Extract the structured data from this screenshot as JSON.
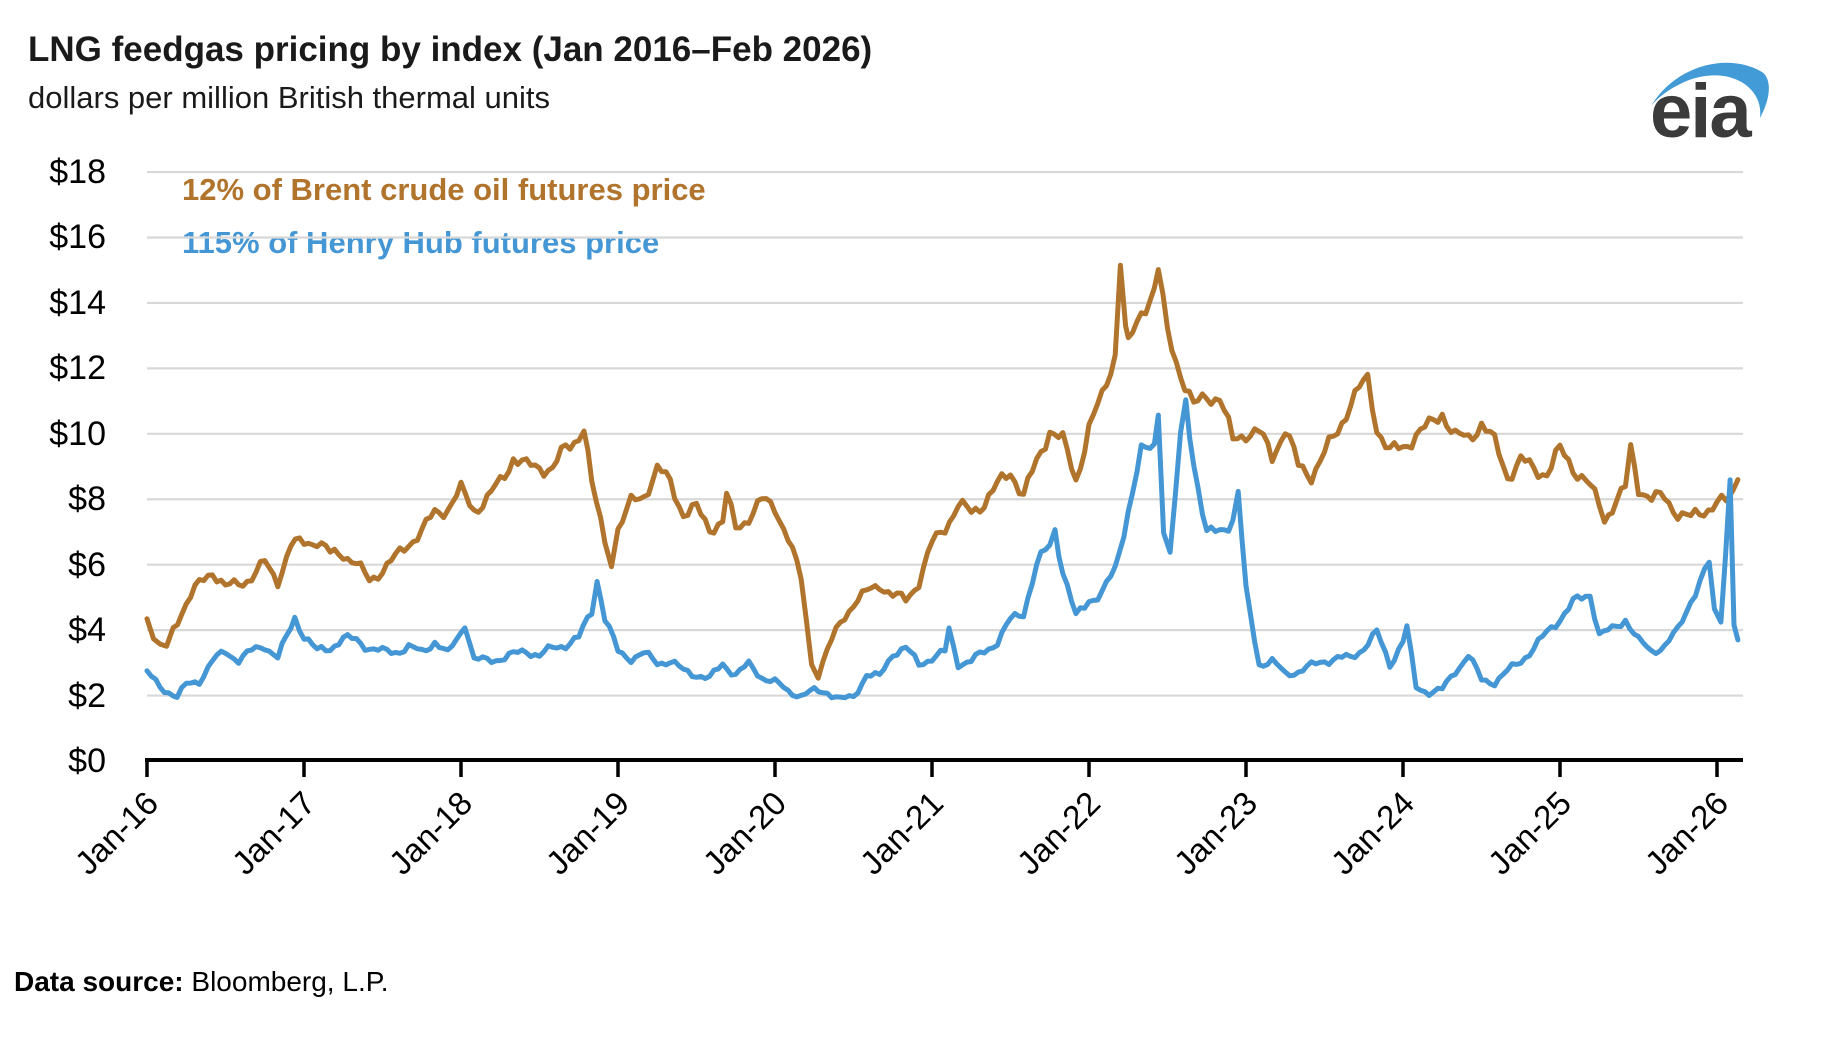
{
  "header": {
    "title": "LNG feedgas pricing by index (Jan 2016–Feb 2026)",
    "subtitle": "dollars per million British thermal units"
  },
  "logo": {
    "text": "eia",
    "swoosh_color": "#429bd6",
    "text_color": "#3b3b3b"
  },
  "legend": {
    "brent_label": "12% of Brent crude oil futures price",
    "henry_hub_label": "115% of Henry Hub futures price"
  },
  "footer": {
    "label": "Data source:",
    "text": " Bloomberg, L.P."
  },
  "colors": {
    "brent": "#b1742c",
    "henry_hub": "#4497d4",
    "grid": "#d8d8d8",
    "axis": "#000000"
  },
  "chart_data": {
    "type": "line",
    "title": "LNG feedgas pricing by index (Jan 2016–Feb 2026)",
    "ylabel": "dollars per million British thermal units",
    "xlabel": "",
    "ylim": [
      0,
      18
    ],
    "grid": true,
    "legend_position": "top-left",
    "x_unit": "months since Jan-2016 (0 = Jan-16, 121.6 = mid-Feb-26)",
    "y_ticks": [
      {
        "v": 0,
        "label": "$0"
      },
      {
        "v": 2,
        "label": "$2"
      },
      {
        "v": 4,
        "label": "$4"
      },
      {
        "v": 6,
        "label": "$6"
      },
      {
        "v": 8,
        "label": "$8"
      },
      {
        "v": 10,
        "label": "$10"
      },
      {
        "v": 12,
        "label": "$12"
      },
      {
        "v": 14,
        "label": "$14"
      },
      {
        "v": 16,
        "label": "$16"
      },
      {
        "v": 18,
        "label": "$18"
      }
    ],
    "x_ticks": [
      "Jan-16",
      "Jan-17",
      "Jan-18",
      "Jan-19",
      "Jan-20",
      "Jan-21",
      "Jan-22",
      "Jan-23",
      "Jan-24",
      "Jan-25",
      "Jan-26"
    ],
    "series": [
      {
        "name": "12% of Brent crude oil futures price",
        "color": "#b1742c",
        "points": [
          [
            0,
            4.35
          ],
          [
            0.5,
            3.6
          ],
          [
            1,
            3.5
          ],
          [
            1.5,
            3.4
          ],
          [
            2,
            4.0
          ],
          [
            3,
            4.75
          ],
          [
            4,
            5.35
          ],
          [
            5,
            5.8
          ],
          [
            6,
            5.35
          ],
          [
            7,
            5.5
          ],
          [
            8,
            5.7
          ],
          [
            9,
            6.1
          ],
          [
            10,
            5.5
          ],
          [
            11,
            6.5
          ],
          [
            12,
            6.6
          ],
          [
            13,
            6.65
          ],
          [
            14,
            6.3
          ],
          [
            15,
            6.4
          ],
          [
            16,
            6.1
          ],
          [
            17,
            5.6
          ],
          [
            18,
            5.9
          ],
          [
            19,
            6.2
          ],
          [
            20,
            6.6
          ],
          [
            21,
            6.9
          ],
          [
            22,
            7.5
          ],
          [
            23,
            7.7
          ],
          [
            24,
            8.3
          ],
          [
            25,
            7.8
          ],
          [
            26,
            8.1
          ],
          [
            27,
            8.6
          ],
          [
            28,
            9.3
          ],
          [
            29,
            8.9
          ],
          [
            30,
            8.9
          ],
          [
            31,
            8.8
          ],
          [
            32,
            9.5
          ],
          [
            33,
            10.0
          ],
          [
            33.4,
            10.3
          ],
          [
            34,
            8.5
          ],
          [
            35,
            6.9
          ],
          [
            35.5,
            6.2
          ],
          [
            36,
            7.2
          ],
          [
            37,
            7.9
          ],
          [
            38,
            8.1
          ],
          [
            39,
            8.8
          ],
          [
            40,
            8.4
          ],
          [
            41,
            7.5
          ],
          [
            42,
            7.7
          ],
          [
            43,
            7.2
          ],
          [
            44,
            7.4
          ],
          [
            44.3,
            8.2
          ],
          [
            45,
            7.2
          ],
          [
            46,
            7.5
          ],
          [
            47,
            7.9
          ],
          [
            48,
            7.7
          ],
          [
            49,
            6.7
          ],
          [
            50,
            5.5
          ],
          [
            50.8,
            3.0
          ],
          [
            51.3,
            2.65
          ],
          [
            52,
            3.4
          ],
          [
            53,
            4.3
          ],
          [
            54,
            4.9
          ],
          [
            55,
            5.2
          ],
          [
            56,
            5.4
          ],
          [
            57,
            5.0
          ],
          [
            58,
            4.85
          ],
          [
            59,
            5.4
          ],
          [
            60,
            6.6
          ],
          [
            61,
            7.2
          ],
          [
            62,
            7.9
          ],
          [
            63,
            7.7
          ],
          [
            64,
            8.0
          ],
          [
            65,
            8.4
          ],
          [
            66,
            8.8
          ],
          [
            67,
            8.0
          ],
          [
            68,
            9.0
          ],
          [
            69,
            10.1
          ],
          [
            70,
            9.8
          ],
          [
            71,
            8.7
          ],
          [
            72,
            10.3
          ],
          [
            73,
            11.2
          ],
          [
            74,
            12.5
          ],
          [
            74.4,
            15.3
          ],
          [
            74.8,
            13.2
          ],
          [
            75,
            12.6
          ],
          [
            76,
            13.6
          ],
          [
            77,
            14.3
          ],
          [
            77.3,
            14.9
          ],
          [
            78,
            13.0
          ],
          [
            79,
            11.9
          ],
          [
            80,
            10.9
          ],
          [
            81,
            11.3
          ],
          [
            82,
            11.2
          ],
          [
            83,
            9.8
          ],
          [
            84,
            10.0
          ],
          [
            85,
            9.9
          ],
          [
            86,
            9.2
          ],
          [
            87,
            10.1
          ],
          [
            88,
            9.0
          ],
          [
            89,
            8.85
          ],
          [
            90,
            9.5
          ],
          [
            91,
            10.2
          ],
          [
            92,
            11.0
          ],
          [
            93.3,
            11.6
          ],
          [
            94,
            10.1
          ],
          [
            95,
            9.3
          ],
          [
            96,
            9.5
          ],
          [
            97,
            10.0
          ],
          [
            98,
            10.3
          ],
          [
            99,
            10.8
          ],
          [
            100,
            10.0
          ],
          [
            101,
            9.9
          ],
          [
            102,
            10.3
          ],
          [
            103,
            9.6
          ],
          [
            104,
            8.6
          ],
          [
            105,
            9.1
          ],
          [
            106,
            8.9
          ],
          [
            107,
            8.9
          ],
          [
            108,
            9.6
          ],
          [
            109,
            9.1
          ],
          [
            110,
            8.6
          ],
          [
            111,
            7.8
          ],
          [
            111.4,
            7.35
          ],
          [
            112,
            7.7
          ],
          [
            113,
            8.2
          ],
          [
            113.4,
            9.4
          ],
          [
            114,
            8.3
          ],
          [
            115,
            8.0
          ],
          [
            116,
            8.1
          ],
          [
            117,
            7.7
          ],
          [
            118,
            7.5
          ],
          [
            119,
            7.7
          ],
          [
            120,
            7.9
          ],
          [
            120.7,
            7.8
          ],
          [
            121.2,
            8.1
          ],
          [
            121.6,
            8.6
          ]
        ]
      },
      {
        "name": "115% of Henry Hub futures price",
        "color": "#4497d4",
        "points": [
          [
            0,
            2.75
          ],
          [
            1,
            2.3
          ],
          [
            2,
            2.05
          ],
          [
            2.3,
            1.95
          ],
          [
            3,
            2.3
          ],
          [
            4,
            2.4
          ],
          [
            5,
            3.0
          ],
          [
            6,
            3.3
          ],
          [
            7,
            3.1
          ],
          [
            8,
            3.4
          ],
          [
            9,
            3.6
          ],
          [
            10,
            3.2
          ],
          [
            11,
            4.1
          ],
          [
            11.3,
            4.4
          ],
          [
            12,
            3.8
          ],
          [
            13,
            3.3
          ],
          [
            14,
            3.4
          ],
          [
            15,
            3.7
          ],
          [
            16,
            3.7
          ],
          [
            17,
            3.5
          ],
          [
            18,
            3.4
          ],
          [
            19,
            3.4
          ],
          [
            20,
            3.5
          ],
          [
            21,
            3.3
          ],
          [
            22,
            3.6
          ],
          [
            23,
            3.2
          ],
          [
            24,
            3.9
          ],
          [
            24.3,
            4.2
          ],
          [
            25,
            3.1
          ],
          [
            26,
            3.1
          ],
          [
            27,
            3.2
          ],
          [
            28,
            3.3
          ],
          [
            29,
            3.4
          ],
          [
            30,
            3.2
          ],
          [
            31,
            3.4
          ],
          [
            32,
            3.5
          ],
          [
            33,
            3.7
          ],
          [
            34,
            4.6
          ],
          [
            34.4,
            5.6
          ],
          [
            35,
            4.4
          ],
          [
            36,
            3.4
          ],
          [
            37,
            3.2
          ],
          [
            38,
            3.3
          ],
          [
            39,
            3.0
          ],
          [
            40,
            3.0
          ],
          [
            41,
            2.7
          ],
          [
            42,
            2.6
          ],
          [
            43,
            2.5
          ],
          [
            44,
            3.0
          ],
          [
            45,
            2.7
          ],
          [
            46,
            3.0
          ],
          [
            47,
            2.6
          ],
          [
            48,
            2.4
          ],
          [
            49,
            2.1
          ],
          [
            50,
            1.95
          ],
          [
            51,
            2.1
          ],
          [
            52,
            2.1
          ],
          [
            53,
            1.9
          ],
          [
            54,
            2.0
          ],
          [
            55,
            2.7
          ],
          [
            56,
            2.6
          ],
          [
            57,
            3.3
          ],
          [
            58,
            3.4
          ],
          [
            59,
            2.9
          ],
          [
            60,
            3.1
          ],
          [
            61,
            3.3
          ],
          [
            61.3,
            4.0
          ],
          [
            62,
            3.0
          ],
          [
            63,
            3.1
          ],
          [
            64,
            3.4
          ],
          [
            65,
            3.7
          ],
          [
            66,
            4.3
          ],
          [
            67,
            4.5
          ],
          [
            68,
            5.9
          ],
          [
            69,
            6.5
          ],
          [
            69.4,
            7.0
          ],
          [
            70,
            5.8
          ],
          [
            71,
            4.4
          ],
          [
            72,
            5.0
          ],
          [
            73,
            5.2
          ],
          [
            74,
            5.9
          ],
          [
            75,
            7.7
          ],
          [
            76,
            9.3
          ],
          [
            77,
            9.6
          ],
          [
            77.3,
            10.7
          ],
          [
            77.7,
            7.0
          ],
          [
            78.2,
            6.2
          ],
          [
            79,
            9.8
          ],
          [
            79.4,
            10.8
          ],
          [
            80,
            9.2
          ],
          [
            81,
            7.0
          ],
          [
            82,
            7.1
          ],
          [
            83,
            7.5
          ],
          [
            83.4,
            8.3
          ],
          [
            84,
            5.2
          ],
          [
            85,
            2.95
          ],
          [
            86,
            3.0
          ],
          [
            87,
            2.6
          ],
          [
            88,
            2.7
          ],
          [
            89,
            2.9
          ],
          [
            90,
            3.1
          ],
          [
            91,
            3.2
          ],
          [
            92,
            3.2
          ],
          [
            93,
            3.5
          ],
          [
            94,
            3.9
          ],
          [
            95,
            2.9
          ],
          [
            96,
            3.6
          ],
          [
            96.3,
            4.0
          ],
          [
            97,
            2.2
          ],
          [
            98,
            2.1
          ],
          [
            99,
            2.2
          ],
          [
            100,
            2.8
          ],
          [
            101,
            3.3
          ],
          [
            102,
            2.5
          ],
          [
            103,
            2.4
          ],
          [
            104,
            2.7
          ],
          [
            105,
            3.0
          ],
          [
            106,
            3.4
          ],
          [
            107,
            3.9
          ],
          [
            108,
            4.4
          ],
          [
            109,
            4.9
          ],
          [
            110.3,
            5.2
          ],
          [
            111,
            3.9
          ],
          [
            112,
            4.0
          ],
          [
            113,
            4.3
          ],
          [
            114,
            3.6
          ],
          [
            115,
            3.3
          ],
          [
            116,
            3.5
          ],
          [
            117,
            4.0
          ],
          [
            118,
            5.0
          ],
          [
            119.4,
            6.1
          ],
          [
            119.8,
            4.6
          ],
          [
            120.3,
            4.3
          ],
          [
            121,
            8.7
          ],
          [
            121.3,
            4.2
          ],
          [
            121.6,
            3.7
          ]
        ]
      }
    ]
  }
}
